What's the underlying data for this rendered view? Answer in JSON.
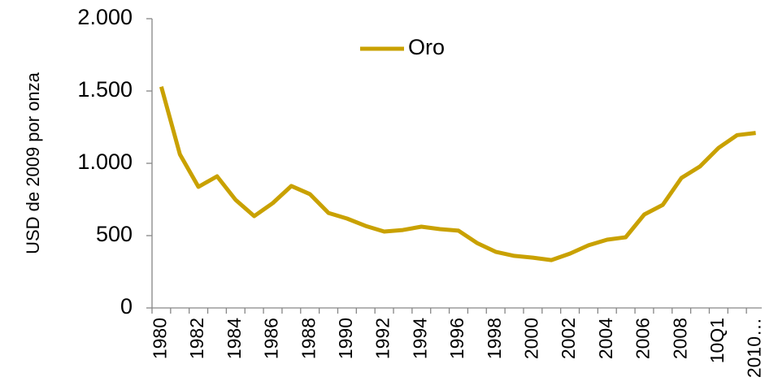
{
  "chart_data": {
    "type": "line",
    "y_label": "USD de 2009 por onza",
    "categories": [
      "1980",
      null,
      "1982",
      null,
      "1984",
      null,
      "1986",
      null,
      "1988",
      null,
      "1990",
      null,
      "1992",
      null,
      "1994",
      null,
      "1996",
      null,
      "1998",
      null,
      "2000",
      null,
      "2002",
      null,
      "2004",
      null,
      "2006",
      null,
      "2008",
      null,
      "10Q1",
      null,
      "2010…"
    ],
    "series": [
      {
        "name": "Oro",
        "color": "#c9a100",
        "values": [
          1530,
          1062,
          837,
          910,
          747,
          635,
          725,
          843,
          787,
          657,
          618,
          567,
          528,
          539,
          562,
          545,
          534,
          449,
          388,
          360,
          348,
          331,
          376,
          433,
          472,
          489,
          646,
          713,
          899,
          978,
          1107,
          1195,
          1210
        ]
      }
    ],
    "ylim": [
      0,
      2000
    ],
    "yticks": [
      0,
      500,
      {
        "value": 1000,
        "label": "1.000"
      },
      {
        "value": 1500,
        "label": "1.500"
      },
      {
        "value": 2000,
        "label": "2.000"
      }
    ],
    "grid": false,
    "legend": "top"
  }
}
